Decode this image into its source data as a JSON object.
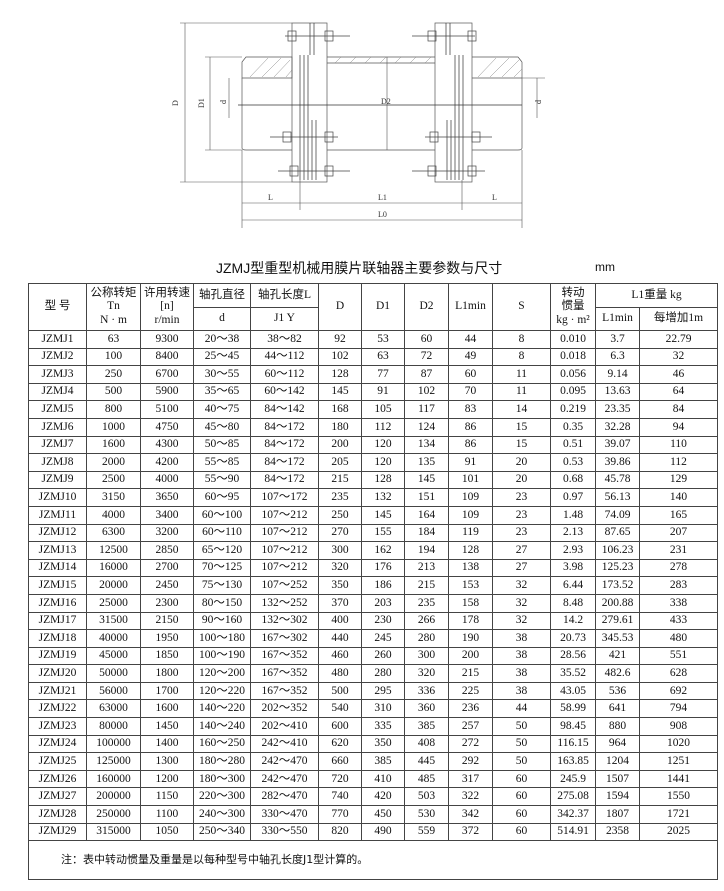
{
  "drawing": {
    "labels": {
      "D": "D",
      "D1": "D1",
      "D2": "D2",
      "d_left": "d",
      "d_right": "d",
      "L_left": "L",
      "L1": "L1",
      "L_right": "L",
      "L0": "L0"
    }
  },
  "title": "JZMJ型重型机械用膜片联轴器主要参数与尺寸",
  "unit": "mm",
  "table": {
    "headers": {
      "model": "型 号",
      "torque": [
        "公称转矩",
        "Tn",
        "N · m"
      ],
      "speed": [
        "许用转速",
        "[n]",
        "r/min"
      ],
      "bore_dia": "轴孔直径",
      "bore_dia_sub": "d",
      "bore_len": "轴孔长度L",
      "bore_len_sub": "J1  Y",
      "D": "D",
      "D1": "D1",
      "D2": "D2",
      "L1min": "L1min",
      "S": "S",
      "inertia": [
        "转动",
        "惯量",
        "kg · m²"
      ],
      "weight": "L1重量 kg",
      "weight_min": "L1min",
      "weight_per_m": "每增加1m"
    },
    "rows": [
      [
        "JZMJ1",
        "63",
        "9300",
        "20～38",
        "38～82",
        "92",
        "53",
        "60",
        "44",
        "8",
        "0.010",
        "3.7",
        "22.79"
      ],
      [
        "JZMJ2",
        "100",
        "8400",
        "25～45",
        "44～112",
        "102",
        "63",
        "72",
        "49",
        "8",
        "0.018",
        "6.3",
        "32"
      ],
      [
        "JZMJ3",
        "250",
        "6700",
        "30～55",
        "60～112",
        "128",
        "77",
        "87",
        "60",
        "11",
        "0.056",
        "9.14",
        "46"
      ],
      [
        "JZMJ4",
        "500",
        "5900",
        "35～65",
        "60～142",
        "145",
        "91",
        "102",
        "70",
        "11",
        "0.095",
        "13.63",
        "64"
      ],
      [
        "JZMJ5",
        "800",
        "5100",
        "40～75",
        "84～142",
        "168",
        "105",
        "117",
        "83",
        "14",
        "0.219",
        "23.35",
        "84"
      ],
      [
        "JZMJ6",
        "1000",
        "4750",
        "45～80",
        "84～172",
        "180",
        "112",
        "124",
        "86",
        "15",
        "0.35",
        "32.28",
        "94"
      ],
      [
        "JZMJ7",
        "1600",
        "4300",
        "50～85",
        "84～172",
        "200",
        "120",
        "134",
        "86",
        "15",
        "0.51",
        "39.07",
        "110"
      ],
      [
        "JZMJ8",
        "2000",
        "4200",
        "55～85",
        "84～172",
        "205",
        "120",
        "135",
        "91",
        "20",
        "0.53",
        "39.86",
        "112"
      ],
      [
        "JZMJ9",
        "2500",
        "4000",
        "55～90",
        "84～172",
        "215",
        "128",
        "145",
        "101",
        "20",
        "0.68",
        "45.78",
        "129"
      ],
      [
        "JZMJ10",
        "3150",
        "3650",
        "60～95",
        "107～172",
        "235",
        "132",
        "151",
        "109",
        "23",
        "0.97",
        "56.13",
        "140"
      ],
      [
        "JZMJ11",
        "4000",
        "3400",
        "60～100",
        "107～212",
        "250",
        "145",
        "164",
        "109",
        "23",
        "1.48",
        "74.09",
        "165"
      ],
      [
        "JZMJ12",
        "6300",
        "3200",
        "60～110",
        "107～212",
        "270",
        "155",
        "184",
        "119",
        "23",
        "2.13",
        "87.65",
        "207"
      ],
      [
        "JZMJ13",
        "12500",
        "2850",
        "65～120",
        "107～212",
        "300",
        "162",
        "194",
        "128",
        "27",
        "2.93",
        "106.23",
        "231"
      ],
      [
        "JZMJ14",
        "16000",
        "2700",
        "70～125",
        "107～212",
        "320",
        "176",
        "213",
        "138",
        "27",
        "3.98",
        "125.23",
        "278"
      ],
      [
        "JZMJ15",
        "20000",
        "2450",
        "75～130",
        "107～252",
        "350",
        "186",
        "215",
        "153",
        "32",
        "6.44",
        "173.52",
        "283"
      ],
      [
        "JZMJ16",
        "25000",
        "2300",
        "80～150",
        "132～252",
        "370",
        "203",
        "235",
        "158",
        "32",
        "8.48",
        "200.88",
        "338"
      ],
      [
        "JZMJ17",
        "31500",
        "2150",
        "90～160",
        "132～302",
        "400",
        "230",
        "266",
        "178",
        "32",
        "14.2",
        "279.61",
        "433"
      ],
      [
        "JZMJ18",
        "40000",
        "1950",
        "100～180",
        "167～302",
        "440",
        "245",
        "280",
        "190",
        "38",
        "20.73",
        "345.53",
        "480"
      ],
      [
        "JZMJ19",
        "45000",
        "1850",
        "100～190",
        "167～352",
        "460",
        "260",
        "300",
        "200",
        "38",
        "28.56",
        "421",
        "551"
      ],
      [
        "JZMJ20",
        "50000",
        "1800",
        "120～200",
        "167～352",
        "480",
        "280",
        "320",
        "215",
        "38",
        "35.52",
        "482.6",
        "628"
      ],
      [
        "JZMJ21",
        "56000",
        "1700",
        "120～220",
        "167～352",
        "500",
        "295",
        "336",
        "225",
        "38",
        "43.05",
        "536",
        "692"
      ],
      [
        "JZMJ22",
        "63000",
        "1600",
        "140～220",
        "202～352",
        "540",
        "310",
        "360",
        "236",
        "44",
        "58.99",
        "641",
        "794"
      ],
      [
        "JZMJ23",
        "80000",
        "1450",
        "140～240",
        "202～410",
        "600",
        "335",
        "385",
        "257",
        "50",
        "98.45",
        "880",
        "908"
      ],
      [
        "JZMJ24",
        "100000",
        "1400",
        "160～250",
        "242～410",
        "620",
        "350",
        "408",
        "272",
        "50",
        "116.15",
        "964",
        "1020"
      ],
      [
        "JZMJ25",
        "125000",
        "1300",
        "180～280",
        "242～470",
        "660",
        "385",
        "445",
        "292",
        "50",
        "163.85",
        "1204",
        "1251"
      ],
      [
        "JZMJ26",
        "160000",
        "1200",
        "180～300",
        "242～470",
        "720",
        "410",
        "485",
        "317",
        "60",
        "245.9",
        "1507",
        "1441"
      ],
      [
        "JZMJ27",
        "200000",
        "1150",
        "220～300",
        "282～470",
        "740",
        "420",
        "503",
        "322",
        "60",
        "275.08",
        "1594",
        "1550"
      ],
      [
        "JZMJ28",
        "250000",
        "1100",
        "240～300",
        "330～470",
        "770",
        "450",
        "530",
        "342",
        "60",
        "342.37",
        "1807",
        "1721"
      ],
      [
        "JZMJ29",
        "315000",
        "1050",
        "250～340",
        "330～550",
        "820",
        "490",
        "559",
        "372",
        "60",
        "514.91",
        "2358",
        "2025"
      ]
    ],
    "note": "注：表中转动惯量及重量是以每种型号中轴孔长度J1型计算的。"
  }
}
